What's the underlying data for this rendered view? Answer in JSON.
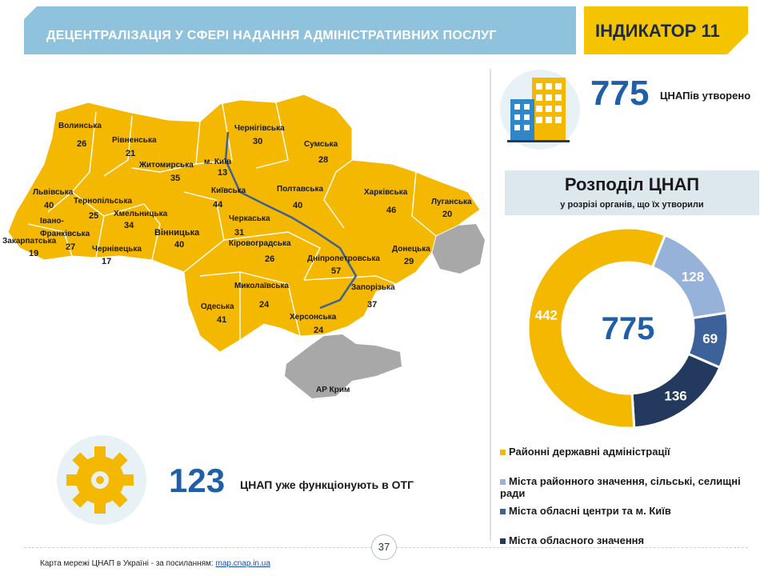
{
  "header": {
    "title": "ДЕЦЕНТРАЛІЗАЦІЯ У СФЕРІ НАДАННЯ АДМІНІСТРАТИВНИХ ПОСЛУГ",
    "indicator": "ІНДИКАТОР 11"
  },
  "summary": {
    "total": "775",
    "total_caption": "ЦНАПів утворено",
    "otg_count": "123",
    "otg_caption": "ЦНАП уже функціонують в ОТГ"
  },
  "distribution": {
    "title": "Розподіл ЦНАП",
    "subtitle": "у розрізі органів, що їх утворили"
  },
  "map": {
    "regions": [
      {
        "name": "Волинська",
        "value": "26"
      },
      {
        "name": "Рівненська",
        "value": "21"
      },
      {
        "name": "Житомирська",
        "value": "35"
      },
      {
        "name": "Чернігівська",
        "value": "30"
      },
      {
        "name": "Сумська",
        "value": "28"
      },
      {
        "name": "м. Київ",
        "value": "13"
      },
      {
        "name": "Київська",
        "value": "44"
      },
      {
        "name": "Полтавська",
        "value": "40"
      },
      {
        "name": "Харківська",
        "value": "46"
      },
      {
        "name": "Луганська",
        "value": "20"
      },
      {
        "name": "Львівська",
        "value": "40"
      },
      {
        "name": "Тернопільська",
        "value": "25"
      },
      {
        "name": "Хмельницька",
        "value": "34"
      },
      {
        "name": "Івано-Франківська",
        "value": "27"
      },
      {
        "name": "Закарпатська",
        "value": "19"
      },
      {
        "name": "Чернівецька",
        "value": "17"
      },
      {
        "name": "Вінницька",
        "value": "40"
      },
      {
        "name": "Черкаська",
        "value": "31"
      },
      {
        "name": "Кіровоградська",
        "value": "26"
      },
      {
        "name": "Дніпропетровська",
        "value": "57"
      },
      {
        "name": "Донецька",
        "value": "29"
      },
      {
        "name": "Запорізька",
        "value": "37"
      },
      {
        "name": "Миколаївська",
        "value": "24"
      },
      {
        "name": "Одеська",
        "value": "41"
      },
      {
        "name": "Херсонська",
        "value": "24"
      }
    ],
    "crimea_label": "АР Крим"
  },
  "page_number": "37",
  "footer": {
    "text": "Карта мережі ЦНАП  в Україні - за посиланням: ",
    "link": "map.cnap.in.ua"
  },
  "colors": {
    "yellow": "#f5b800",
    "light_blue": "#97b2d8",
    "mid_blue": "#3d6199",
    "dark_navy": "#233a5e",
    "header_blue": "#8fc3dd",
    "number_blue": "#1e5fa8",
    "occupied_gray": "#a8a8a8"
  },
  "chart_data": {
    "type": "pie",
    "center_label": "775",
    "series": [
      {
        "name": "Районні державні адміністрації",
        "value": 442,
        "color": "#f5b800"
      },
      {
        "name": "Міста районного значення, сільські, селищні ради",
        "value": 128,
        "color": "#97b2d8"
      },
      {
        "name": "Міста обласні центри та м.  Київ",
        "value": 69,
        "color": "#3d6199"
      },
      {
        "name": "Міста обласного значення",
        "value": 136,
        "color": "#233a5e"
      }
    ]
  }
}
